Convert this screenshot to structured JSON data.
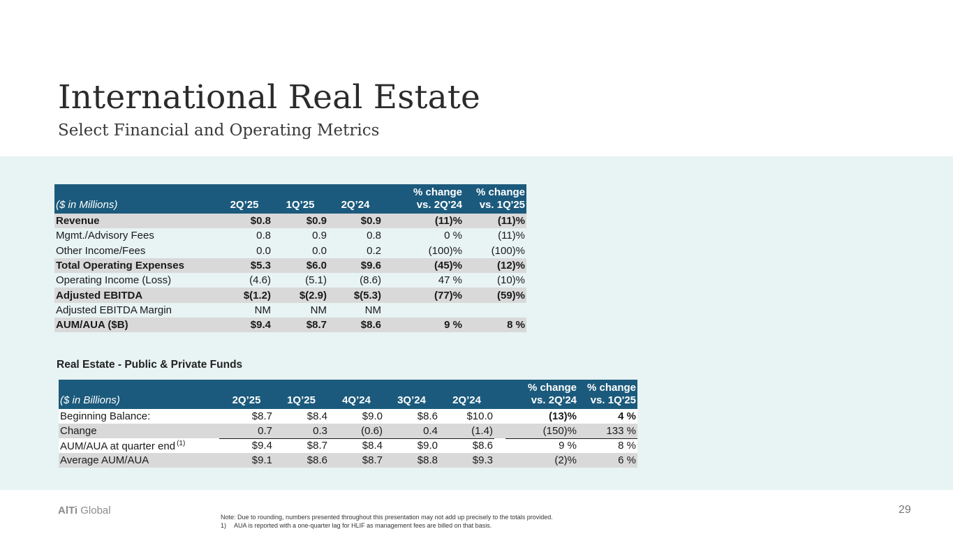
{
  "header": {
    "title": "International Real Estate",
    "subtitle": "Select Financial and Operating Metrics"
  },
  "table1": {
    "label_header": "($ in Millions)",
    "columns": [
      "2Q’25",
      "1Q’25",
      "2Q’24"
    ],
    "pct_headers": [
      {
        "line1": "% change",
        "line2": "vs. 2Q'24"
      },
      {
        "line1": "% change",
        "line2": "vs. 1Q'25"
      }
    ],
    "rows": [
      {
        "label": "Revenue",
        "values": [
          "$0.8",
          "$0.9",
          "$0.9"
        ],
        "pct": [
          "(11)%",
          "(11)%"
        ],
        "bold": true,
        "shaded": true
      },
      {
        "label": "Mgmt./Advisory Fees",
        "values": [
          "0.8",
          "0.9",
          "0.8"
        ],
        "pct": [
          "0 %",
          "(11)%"
        ],
        "bold": false,
        "shaded": false
      },
      {
        "label": "Other Income/Fees",
        "values": [
          "0.0",
          "0.0",
          "0.2"
        ],
        "pct": [
          "(100)%",
          "(100)%"
        ],
        "bold": false,
        "shaded": false
      },
      {
        "label": "Total Operating Expenses",
        "values": [
          "$5.3",
          "$6.0",
          "$9.6"
        ],
        "pct": [
          "(45)%",
          "(12)%"
        ],
        "bold": true,
        "shaded": true
      },
      {
        "label": "Operating Income (Loss)",
        "values": [
          "(4.6)",
          "(5.1)",
          "(8.6)"
        ],
        "pct": [
          "47 %",
          "(10)%"
        ],
        "bold": false,
        "shaded": false
      },
      {
        "label": "Adjusted EBITDA",
        "values": [
          "$(1.2)",
          "$(2.9)",
          "$(5.3)"
        ],
        "pct": [
          "(77)%",
          "(59)%"
        ],
        "bold": true,
        "shaded": true
      },
      {
        "label": "Adjusted EBITDA Margin",
        "values": [
          "NM",
          "NM",
          "NM"
        ],
        "pct": [
          "",
          ""
        ],
        "bold": false,
        "shaded": false
      },
      {
        "label": "AUM/AUA ($B)",
        "values": [
          "$9.4",
          "$8.7",
          "$8.6"
        ],
        "pct": [
          "9 %",
          "8 %"
        ],
        "bold": true,
        "shaded": true
      }
    ]
  },
  "section2_title": "Real Estate - Public & Private Funds",
  "table2": {
    "label_header": "($ in Billions)",
    "columns": [
      "2Q’25",
      "1Q’25",
      "4Q’24",
      "3Q’24",
      "2Q’24"
    ],
    "pct_headers": [
      {
        "line1": "% change",
        "line2": "vs. 2Q'24"
      },
      {
        "line1": "% change",
        "line2": "vs. 1Q'25"
      }
    ],
    "rows": [
      {
        "label": "Beginning Balance:",
        "values": [
          "$8.7",
          "$8.4",
          "$9.0",
          "$8.6",
          "$10.0"
        ],
        "pct": [
          "(13)%",
          "4 %"
        ]
      },
      {
        "label": "Change",
        "values": [
          "0.7",
          "0.3",
          "(0.6)",
          "0.4",
          "(1.4)"
        ],
        "pct": [
          "(150)%",
          "133 %"
        ]
      },
      {
        "label": "AUM/AUA at quarter end",
        "footnote": "(1)",
        "values": [
          "$9.4",
          "$8.7",
          "$8.4",
          "$9.0",
          "$8.6"
        ],
        "pct": [
          "9 %",
          "8 %"
        ]
      },
      {
        "label": "Average AUM/AUA",
        "values": [
          "$9.1",
          "$8.6",
          "$8.7",
          "$8.8",
          "$9.3"
        ],
        "pct": [
          "(2)%",
          "6 %"
        ]
      }
    ]
  },
  "footer": {
    "brand_bold": "AlTi",
    "brand_rest": " Global",
    "page_number": "29",
    "note": "Note: Due to rounding, numbers presented throughout this presentation may not add up precisely to the totals provided.",
    "footnote_num": "1)",
    "footnote_text": "AUA is reported with a one-quarter lag for HLIF as management fees are billed on that basis."
  },
  "colors": {
    "header_bg": "#1b5a7c",
    "band_bg": "#e8f3f3",
    "row_shade": "#d9d9d9"
  }
}
